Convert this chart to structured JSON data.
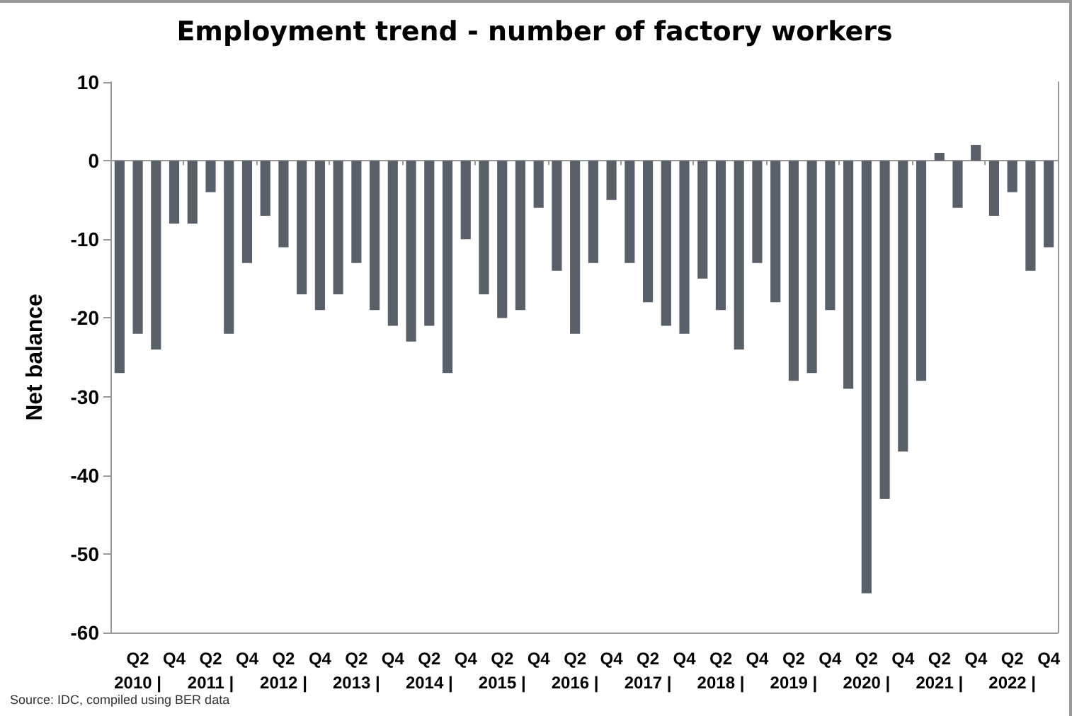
{
  "chart_data": {
    "type": "bar",
    "title": "Employment trend - number of factory workers",
    "ylabel": "Net balance",
    "categories": [
      null,
      "Q2\n2010 |",
      null,
      "Q4",
      null,
      "Q2\n2011 |",
      null,
      "Q4",
      null,
      "Q2\n2012 |",
      null,
      "Q4",
      null,
      "Q2\n2013 |",
      null,
      "Q4",
      null,
      "Q2\n2014 |",
      null,
      "Q4",
      null,
      "Q2\n2015 |",
      null,
      "Q4",
      null,
      "Q2\n2016 |",
      null,
      "Q4",
      null,
      "Q2\n2017 |",
      null,
      "Q4",
      null,
      "Q2\n2018 |",
      null,
      "Q4",
      null,
      "Q2\n2019 |",
      null,
      "Q4",
      null,
      "Q2\n2020 |",
      null,
      "Q4",
      null,
      "Q2\n2021 |",
      null,
      "Q4",
      null,
      "Q2\n2022 |",
      null,
      "Q4"
    ],
    "values": [
      -27,
      -22,
      -24,
      -8,
      -8,
      -4,
      -22,
      -13,
      -7,
      -11,
      -17,
      -19,
      -17,
      -13,
      -19,
      -21,
      -23,
      -21,
      -27,
      -10,
      -17,
      -20,
      -19,
      -6,
      -14,
      -22,
      -13,
      -5,
      -13,
      -18,
      -21,
      -22,
      -15,
      -19,
      -24,
      -13,
      -18,
      -28,
      -27,
      -19,
      -29,
      -55,
      -43,
      -37,
      -28,
      1,
      -6,
      2,
      -7,
      -4,
      -14,
      -11
    ],
    "color": "#5a6069",
    "ylim": [
      -60,
      10
    ],
    "yticks": [
      -60,
      -50,
      -40,
      -30,
      -20,
      -10,
      0,
      10
    ],
    "annotations": [
      "Source: IDC, compiled using BER data"
    ]
  }
}
